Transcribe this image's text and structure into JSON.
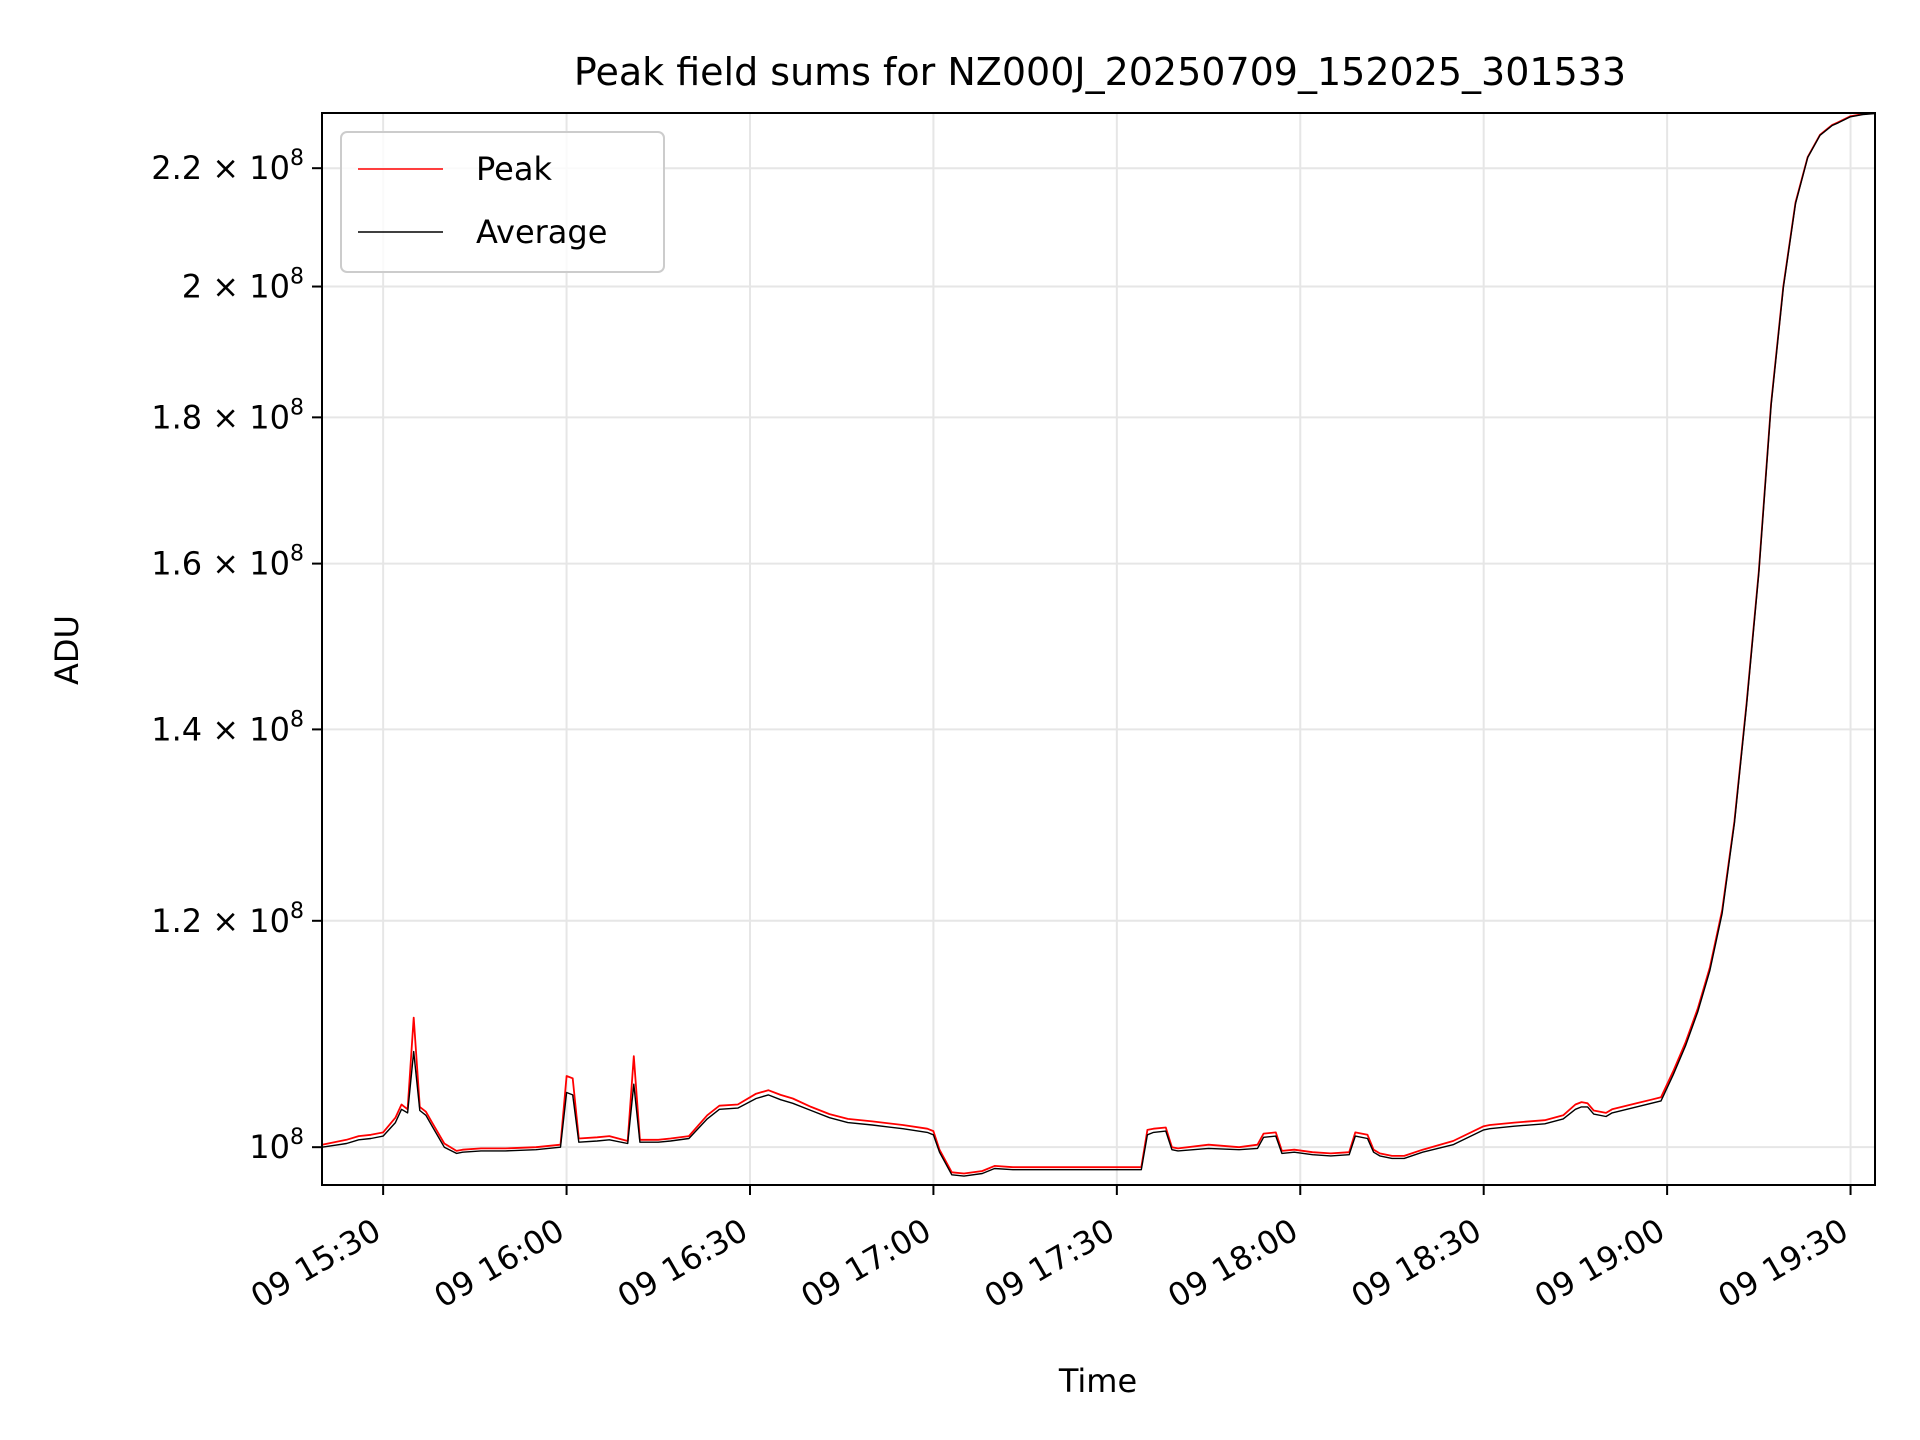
{
  "chart_data": {
    "type": "line",
    "title": "Peak field sums for NZ000J_20250709_152025_301533",
    "xlabel": "Time",
    "ylabel": "ADU",
    "yscale": "log",
    "grid": true,
    "legend_position": "top-left",
    "xlim": [
      "2025-07-09 15:20",
      "2025-07-09 19:34"
    ],
    "ylim": [
      97000000,
      230000000
    ],
    "x_ticks": [
      {
        "value": "2025-07-09 15:30",
        "label": "09 15:30"
      },
      {
        "value": "2025-07-09 16:00",
        "label": "09 16:00"
      },
      {
        "value": "2025-07-09 16:30",
        "label": "09 16:30"
      },
      {
        "value": "2025-07-09 17:00",
        "label": "09 17:00"
      },
      {
        "value": "2025-07-09 17:30",
        "label": "09 17:30"
      },
      {
        "value": "2025-07-09 18:00",
        "label": "09 18:00"
      },
      {
        "value": "2025-07-09 18:30",
        "label": "09 18:30"
      },
      {
        "value": "2025-07-09 19:00",
        "label": "09 19:00"
      },
      {
        "value": "2025-07-09 19:30",
        "label": "09 19:30"
      }
    ],
    "y_ticks": [
      {
        "value": 100000000,
        "mantissa": "",
        "exponent": "8"
      },
      {
        "value": 120000000,
        "mantissa": "1.2",
        "exponent": "8"
      },
      {
        "value": 140000000,
        "mantissa": "1.4",
        "exponent": "8"
      },
      {
        "value": 160000000,
        "mantissa": "1.6",
        "exponent": "8"
      },
      {
        "value": 180000000,
        "mantissa": "1.8",
        "exponent": "8"
      },
      {
        "value": 200000000,
        "mantissa": "2",
        "exponent": "8"
      },
      {
        "value": 220000000,
        "mantissa": "2.2",
        "exponent": "8"
      }
    ],
    "series": [
      {
        "name": "Peak",
        "color": "#ff0000",
        "x": [
          "2025-07-09 15:20",
          "2025-07-09 15:24",
          "2025-07-09 15:26",
          "2025-07-09 15:28",
          "2025-07-09 15:30",
          "2025-07-09 15:32",
          "2025-07-09 15:33",
          "2025-07-09 15:34",
          "2025-07-09 15:35",
          "2025-07-09 15:36",
          "2025-07-09 15:37",
          "2025-07-09 15:38",
          "2025-07-09 15:40",
          "2025-07-09 15:42",
          "2025-07-09 15:43",
          "2025-07-09 15:46",
          "2025-07-09 15:50",
          "2025-07-09 15:55",
          "2025-07-09 15:59",
          "2025-07-09 16:00",
          "2025-07-09 16:01",
          "2025-07-09 16:02",
          "2025-07-09 16:05",
          "2025-07-09 16:07",
          "2025-07-09 16:10",
          "2025-07-09 16:11",
          "2025-07-09 16:12",
          "2025-07-09 16:15",
          "2025-07-09 16:17",
          "2025-07-09 16:20",
          "2025-07-09 16:23",
          "2025-07-09 16:25",
          "2025-07-09 16:28",
          "2025-07-09 16:31",
          "2025-07-09 16:33",
          "2025-07-09 16:35",
          "2025-07-09 16:37",
          "2025-07-09 16:40",
          "2025-07-09 16:43",
          "2025-07-09 16:46",
          "2025-07-09 16:50",
          "2025-07-09 16:55",
          "2025-07-09 16:59",
          "2025-07-09 17:00",
          "2025-07-09 17:01",
          "2025-07-09 17:03",
          "2025-07-09 17:05",
          "2025-07-09 17:08",
          "2025-07-09 17:10",
          "2025-07-09 17:13",
          "2025-07-09 17:15",
          "2025-07-09 17:20",
          "2025-07-09 17:25",
          "2025-07-09 17:34",
          "2025-07-09 17:35",
          "2025-07-09 17:36",
          "2025-07-09 17:38",
          "2025-07-09 17:39",
          "2025-07-09 17:40",
          "2025-07-09 17:45",
          "2025-07-09 17:50",
          "2025-07-09 17:53",
          "2025-07-09 17:54",
          "2025-07-09 17:56",
          "2025-07-09 17:57",
          "2025-07-09 17:59",
          "2025-07-09 18:02",
          "2025-07-09 18:05",
          "2025-07-09 18:08",
          "2025-07-09 18:09",
          "2025-07-09 18:11",
          "2025-07-09 18:12",
          "2025-07-09 18:13",
          "2025-07-09 18:15",
          "2025-07-09 18:17",
          "2025-07-09 18:20",
          "2025-07-09 18:25",
          "2025-07-09 18:30",
          "2025-07-09 18:31",
          "2025-07-09 18:35",
          "2025-07-09 18:40",
          "2025-07-09 18:43",
          "2025-07-09 18:45",
          "2025-07-09 18:46",
          "2025-07-09 18:47",
          "2025-07-09 18:48",
          "2025-07-09 18:50",
          "2025-07-09 18:51",
          "2025-07-09 18:55",
          "2025-07-09 18:59",
          "2025-07-09 19:01",
          "2025-07-09 19:03",
          "2025-07-09 19:05",
          "2025-07-09 19:07",
          "2025-07-09 19:09",
          "2025-07-09 19:11",
          "2025-07-09 19:13",
          "2025-07-09 19:15",
          "2025-07-09 19:17",
          "2025-07-09 19:19",
          "2025-07-09 19:21",
          "2025-07-09 19:23",
          "2025-07-09 19:25",
          "2025-07-09 19:27",
          "2025-07-09 19:28",
          "2025-07-09 19:30",
          "2025-07-09 19:32",
          "2025-07-09 19:34"
        ],
        "y": [
          100200000,
          100600000,
          100900000,
          101000000,
          101200000,
          102400000,
          103500000,
          103100000,
          111000000,
          103300000,
          102900000,
          102000000,
          100300000,
          99700000,
          99800000,
          99900000,
          99900000,
          100000000,
          100200000,
          105900000,
          105700000,
          100700000,
          100800000,
          100900000,
          100500000,
          107600000,
          100600000,
          100600000,
          100700000,
          100900000,
          102600000,
          103400000,
          103500000,
          104400000,
          104700000,
          104300000,
          104000000,
          103300000,
          102700000,
          102300000,
          102100000,
          101800000,
          101500000,
          101300000,
          99800000,
          98000000,
          97900000,
          98100000,
          98500000,
          98400000,
          98400000,
          98400000,
          98400000,
          98400000,
          101400000,
          101500000,
          101600000,
          100000000,
          99900000,
          100200000,
          100000000,
          100200000,
          101100000,
          101200000,
          99700000,
          99800000,
          99600000,
          99500000,
          99600000,
          101200000,
          101000000,
          99800000,
          99500000,
          99300000,
          99300000,
          99800000,
          100500000,
          101700000,
          101800000,
          102000000,
          102200000,
          102600000,
          103500000,
          103700000,
          103600000,
          103000000,
          102800000,
          103100000,
          103600000,
          104100000,
          106300000,
          108800000,
          111800000,
          115600000,
          121000000,
          130000000,
          143000000,
          159000000,
          182000000,
          200000000,
          214000000,
          222000000,
          226000000,
          227800000,
          228300000,
          229400000,
          229800000,
          230000000
        ]
      },
      {
        "name": "Average",
        "color": "#000000",
        "x": [
          "2025-07-09 15:20",
          "2025-07-09 15:24",
          "2025-07-09 15:26",
          "2025-07-09 15:28",
          "2025-07-09 15:30",
          "2025-07-09 15:32",
          "2025-07-09 15:33",
          "2025-07-09 15:34",
          "2025-07-09 15:35",
          "2025-07-09 15:36",
          "2025-07-09 15:37",
          "2025-07-09 15:38",
          "2025-07-09 15:40",
          "2025-07-09 15:42",
          "2025-07-09 15:43",
          "2025-07-09 15:46",
          "2025-07-09 15:50",
          "2025-07-09 15:55",
          "2025-07-09 15:59",
          "2025-07-09 16:00",
          "2025-07-09 16:01",
          "2025-07-09 16:02",
          "2025-07-09 16:05",
          "2025-07-09 16:07",
          "2025-07-09 16:10",
          "2025-07-09 16:11",
          "2025-07-09 16:12",
          "2025-07-09 16:15",
          "2025-07-09 16:17",
          "2025-07-09 16:20",
          "2025-07-09 16:23",
          "2025-07-09 16:25",
          "2025-07-09 16:28",
          "2025-07-09 16:31",
          "2025-07-09 16:33",
          "2025-07-09 16:35",
          "2025-07-09 16:37",
          "2025-07-09 16:40",
          "2025-07-09 16:43",
          "2025-07-09 16:46",
          "2025-07-09 16:50",
          "2025-07-09 16:55",
          "2025-07-09 16:59",
          "2025-07-09 17:00",
          "2025-07-09 17:01",
          "2025-07-09 17:03",
          "2025-07-09 17:05",
          "2025-07-09 17:08",
          "2025-07-09 17:10",
          "2025-07-09 17:13",
          "2025-07-09 17:15",
          "2025-07-09 17:20",
          "2025-07-09 17:25",
          "2025-07-09 17:34",
          "2025-07-09 17:35",
          "2025-07-09 17:36",
          "2025-07-09 17:38",
          "2025-07-09 17:39",
          "2025-07-09 17:40",
          "2025-07-09 17:45",
          "2025-07-09 17:50",
          "2025-07-09 17:53",
          "2025-07-09 17:54",
          "2025-07-09 17:56",
          "2025-07-09 17:57",
          "2025-07-09 17:59",
          "2025-07-09 18:02",
          "2025-07-09 18:05",
          "2025-07-09 18:08",
          "2025-07-09 18:09",
          "2025-07-09 18:11",
          "2025-07-09 18:12",
          "2025-07-09 18:13",
          "2025-07-09 18:15",
          "2025-07-09 18:17",
          "2025-07-09 18:20",
          "2025-07-09 18:25",
          "2025-07-09 18:30",
          "2025-07-09 18:31",
          "2025-07-09 18:35",
          "2025-07-09 18:40",
          "2025-07-09 18:43",
          "2025-07-09 18:45",
          "2025-07-09 18:46",
          "2025-07-09 18:47",
          "2025-07-09 18:48",
          "2025-07-09 18:50",
          "2025-07-09 18:51",
          "2025-07-09 18:55",
          "2025-07-09 18:59",
          "2025-07-09 19:01",
          "2025-07-09 19:03",
          "2025-07-09 19:05",
          "2025-07-09 19:07",
          "2025-07-09 19:09",
          "2025-07-09 19:11",
          "2025-07-09 19:13",
          "2025-07-09 19:15",
          "2025-07-09 19:17",
          "2025-07-09 19:19",
          "2025-07-09 19:21",
          "2025-07-09 19:23",
          "2025-07-09 19:25",
          "2025-07-09 19:27",
          "2025-07-09 19:28",
          "2025-07-09 19:30",
          "2025-07-09 19:32",
          "2025-07-09 19:34"
        ],
        "y": [
          100000000,
          100300000,
          100600000,
          100700000,
          100900000,
          102000000,
          103100000,
          102800000,
          108000000,
          103000000,
          102600000,
          101700000,
          100000000,
          99500000,
          99600000,
          99700000,
          99700000,
          99800000,
          100000000,
          104500000,
          104300000,
          100400000,
          100500000,
          100600000,
          100300000,
          105200000,
          100400000,
          100400000,
          100500000,
          100700000,
          102300000,
          103100000,
          103200000,
          104000000,
          104300000,
          103900000,
          103600000,
          103000000,
          102400000,
          102000000,
          101800000,
          101500000,
          101200000,
          101000000,
          99600000,
          97800000,
          97700000,
          97900000,
          98300000,
          98200000,
          98200000,
          98200000,
          98200000,
          98200000,
          101000000,
          101200000,
          101300000,
          99800000,
          99700000,
          99900000,
          99800000,
          99900000,
          100800000,
          100900000,
          99500000,
          99600000,
          99400000,
          99300000,
          99400000,
          100900000,
          100700000,
          99600000,
          99300000,
          99100000,
          99100000,
          99600000,
          100200000,
          101400000,
          101500000,
          101700000,
          101900000,
          102300000,
          103100000,
          103300000,
          103300000,
          102700000,
          102500000,
          102800000,
          103300000,
          103800000,
          106000000,
          108500000,
          111500000,
          115300000,
          120700000,
          129800000,
          142800000,
          158800000,
          181800000,
          199800000,
          213800000,
          221900000,
          225900000,
          227700000,
          228200000,
          229300000,
          229700000,
          229900000
        ]
      }
    ]
  }
}
